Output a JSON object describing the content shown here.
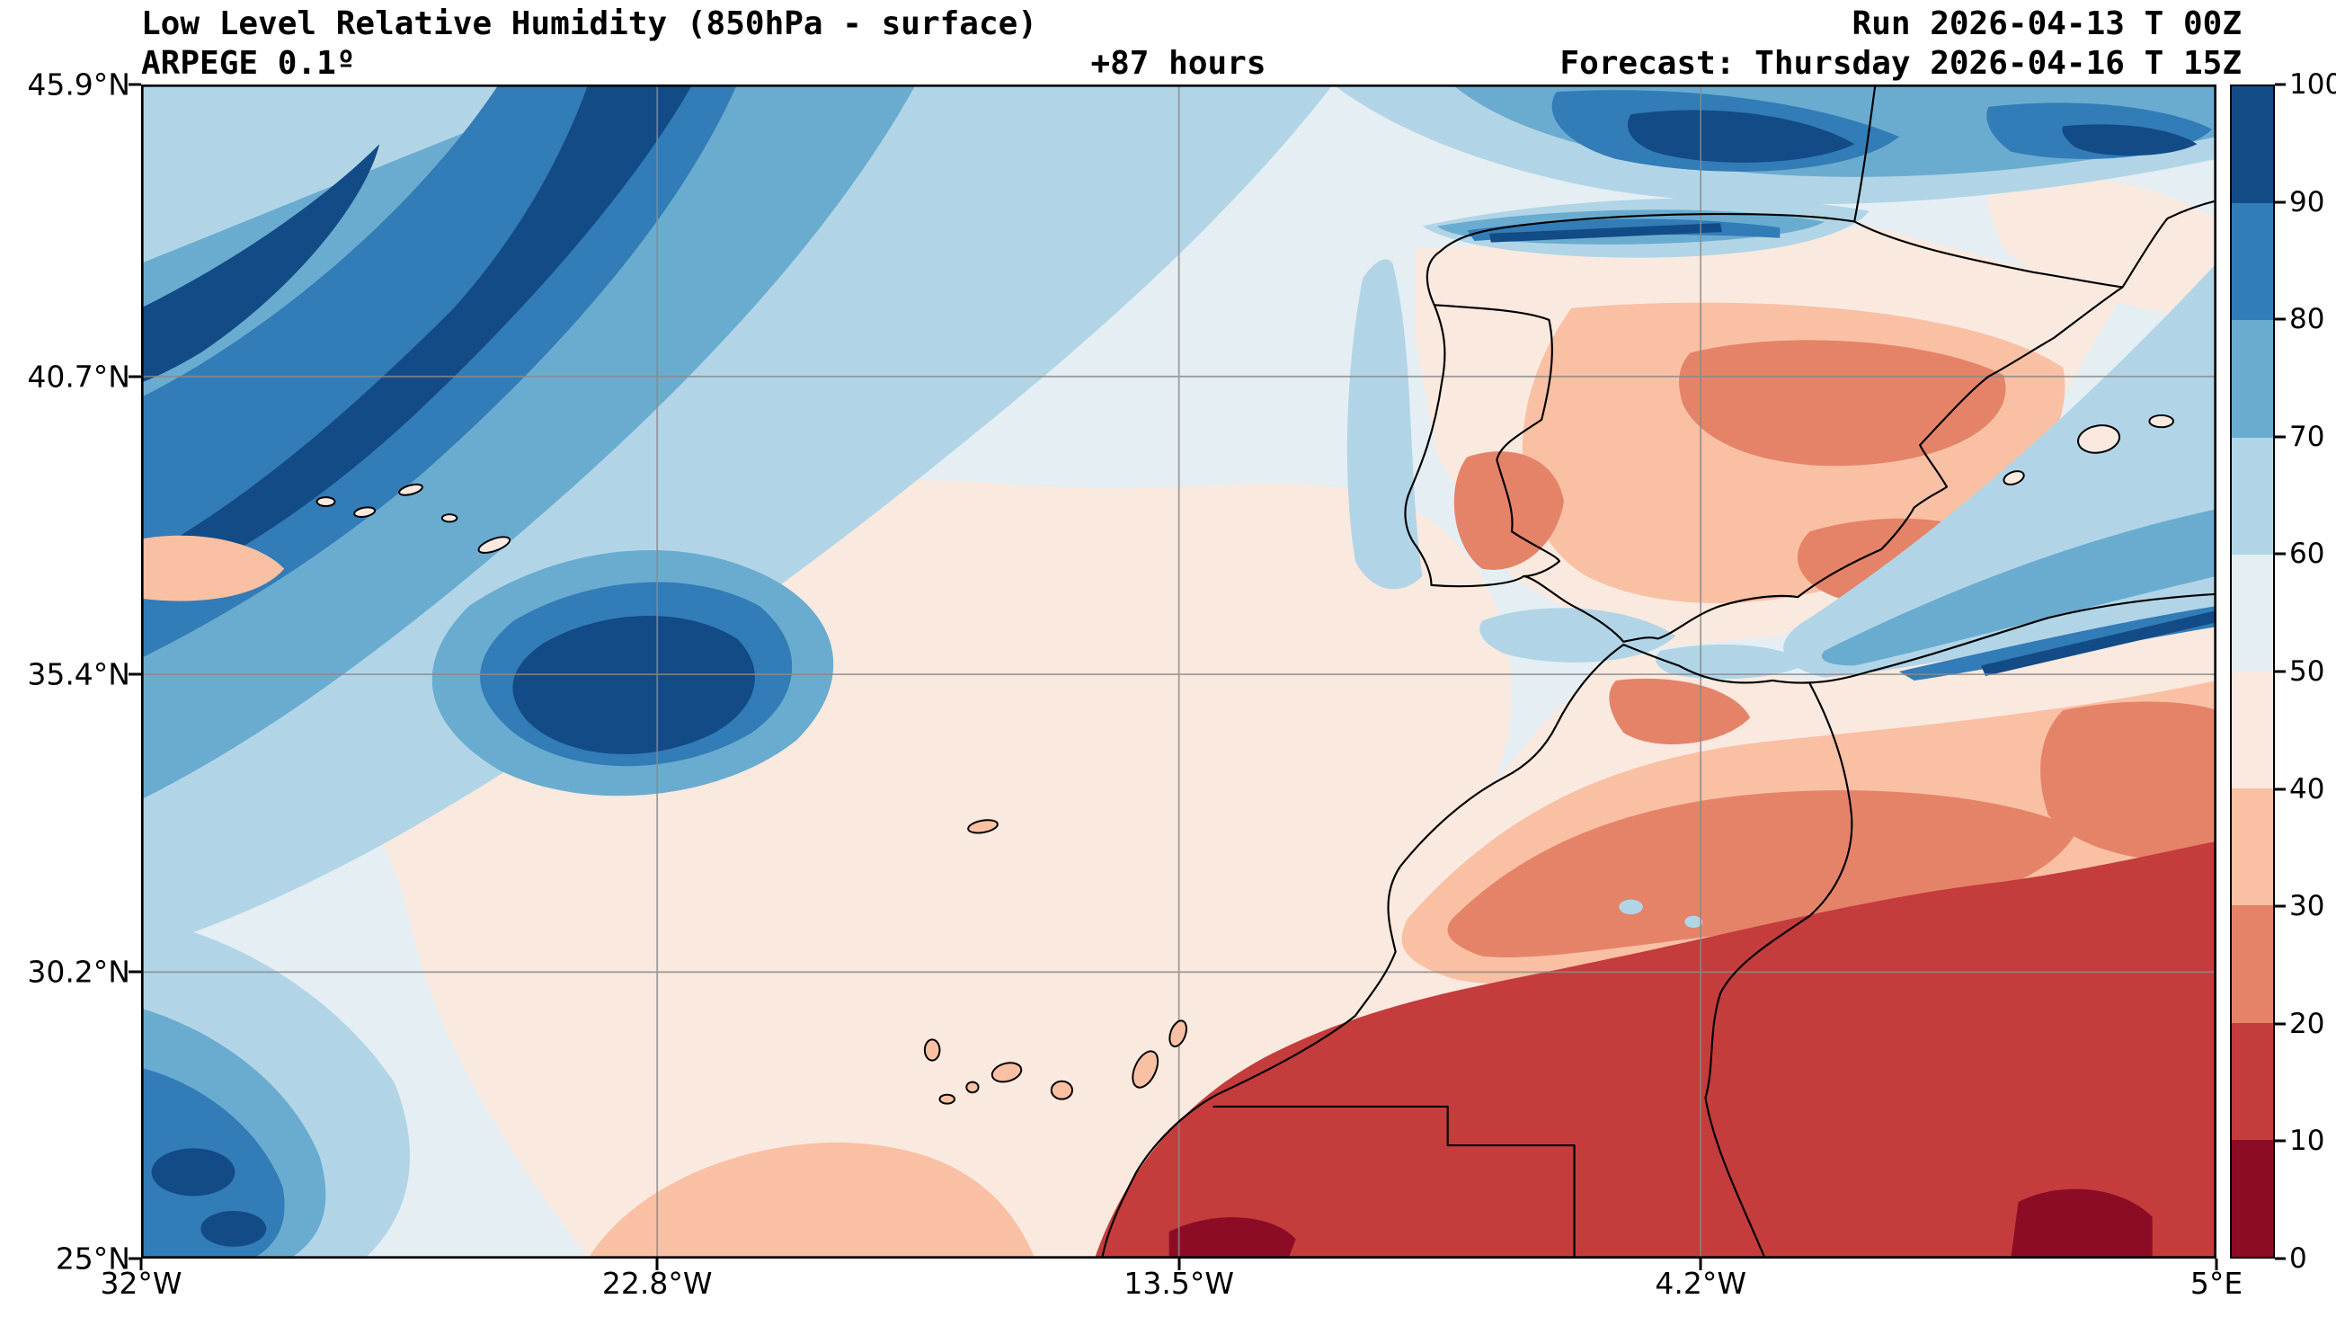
{
  "header": {
    "title": "Low Level Relative Humidity (850hPa - surface)",
    "model_line": "ARPEGE 0.1º",
    "lead_time": "+87 hours",
    "run_line": "Run 2026-04-13 T 00Z",
    "forecast_line": "Forecast: Thursday 2026-04-16 T 15Z"
  },
  "axes": {
    "y_tick_labels_top_to_bottom": [
      "45.9°N",
      "40.7°N",
      "35.4°N",
      "30.2°N",
      "25°N"
    ],
    "x_tick_labels_left_to_right": [
      "32°W",
      "22.8°W",
      "13.5°W",
      "4.2°W",
      "5°E"
    ]
  },
  "colorbar": {
    "tick_labels_top_to_bottom": [
      "100",
      "90",
      "80",
      "70",
      "60",
      "50",
      "40",
      "30",
      "20",
      "10",
      "0"
    ],
    "segment_colors_top_to_bottom": [
      "#134b86",
      "#327cb7",
      "#6aacd0",
      "#b1d5e7",
      "#e4eef3",
      "#fae9df",
      "#f9c0a4",
      "#e58368",
      "#c43c3c",
      "#8d0c25"
    ]
  },
  "chart_data": {
    "type": "heatmap",
    "subtype": "filled-contour-geographic-map",
    "variable": "Low Level Relative Humidity (850hPa - surface)",
    "units": "%",
    "model": "ARPEGE 0.1º",
    "run": "2026-04-13 T 00Z",
    "forecast_valid": "Thursday 2026-04-16 T 15Z",
    "lead_hours": 87,
    "lon_range_deg": [
      -32,
      5
    ],
    "lat_range_deg": [
      25,
      45.9
    ],
    "contour_levels": [
      0,
      10,
      20,
      30,
      40,
      50,
      60,
      70,
      80,
      90,
      100
    ],
    "palette_low_to_high": [
      "#8d0c25",
      "#c43c3c",
      "#e58368",
      "#f9c0a4",
      "#fae9df",
      "#e4eef3",
      "#b1d5e7",
      "#6aacd0",
      "#327cb7",
      "#134b86"
    ],
    "grid": true,
    "legend_position": "right-colorbar",
    "features": [
      "Very humid band (RH 80-100%) sweeping across the NE Atlantic from the top of the map SW toward ~35N 25W, with a dark humid core near 35N 24W",
      "High humidity (70-100%) over the Bay of Biscay, northern Spain coast and SW France in the top-right corner",
      "Dry interior of the Iberian Peninsula (RH 30-50%) with driest patches over the northern meseta and the SE",
      "Moist air (60-80%) over the western Mediterranean between eastern Spain and the Algerian coast",
      "Transition zone (40-60%) over the subtropical Atlantic around Madeira and the Canary Islands",
      "Very dry Saharan air (RH 0-20%) over southern Morocco, Western Sahara, Mauritania and southern Algeria, driest (0-10%) near the bottom edge",
      "Salmon/orange band (20-40%) along the Atlas mountains and coastal Morocco with tiny humid blue specks over the High Atlas",
      "Small outlined islands: Azores, Madeira, Canary Islands, Balearic Islands"
    ]
  }
}
